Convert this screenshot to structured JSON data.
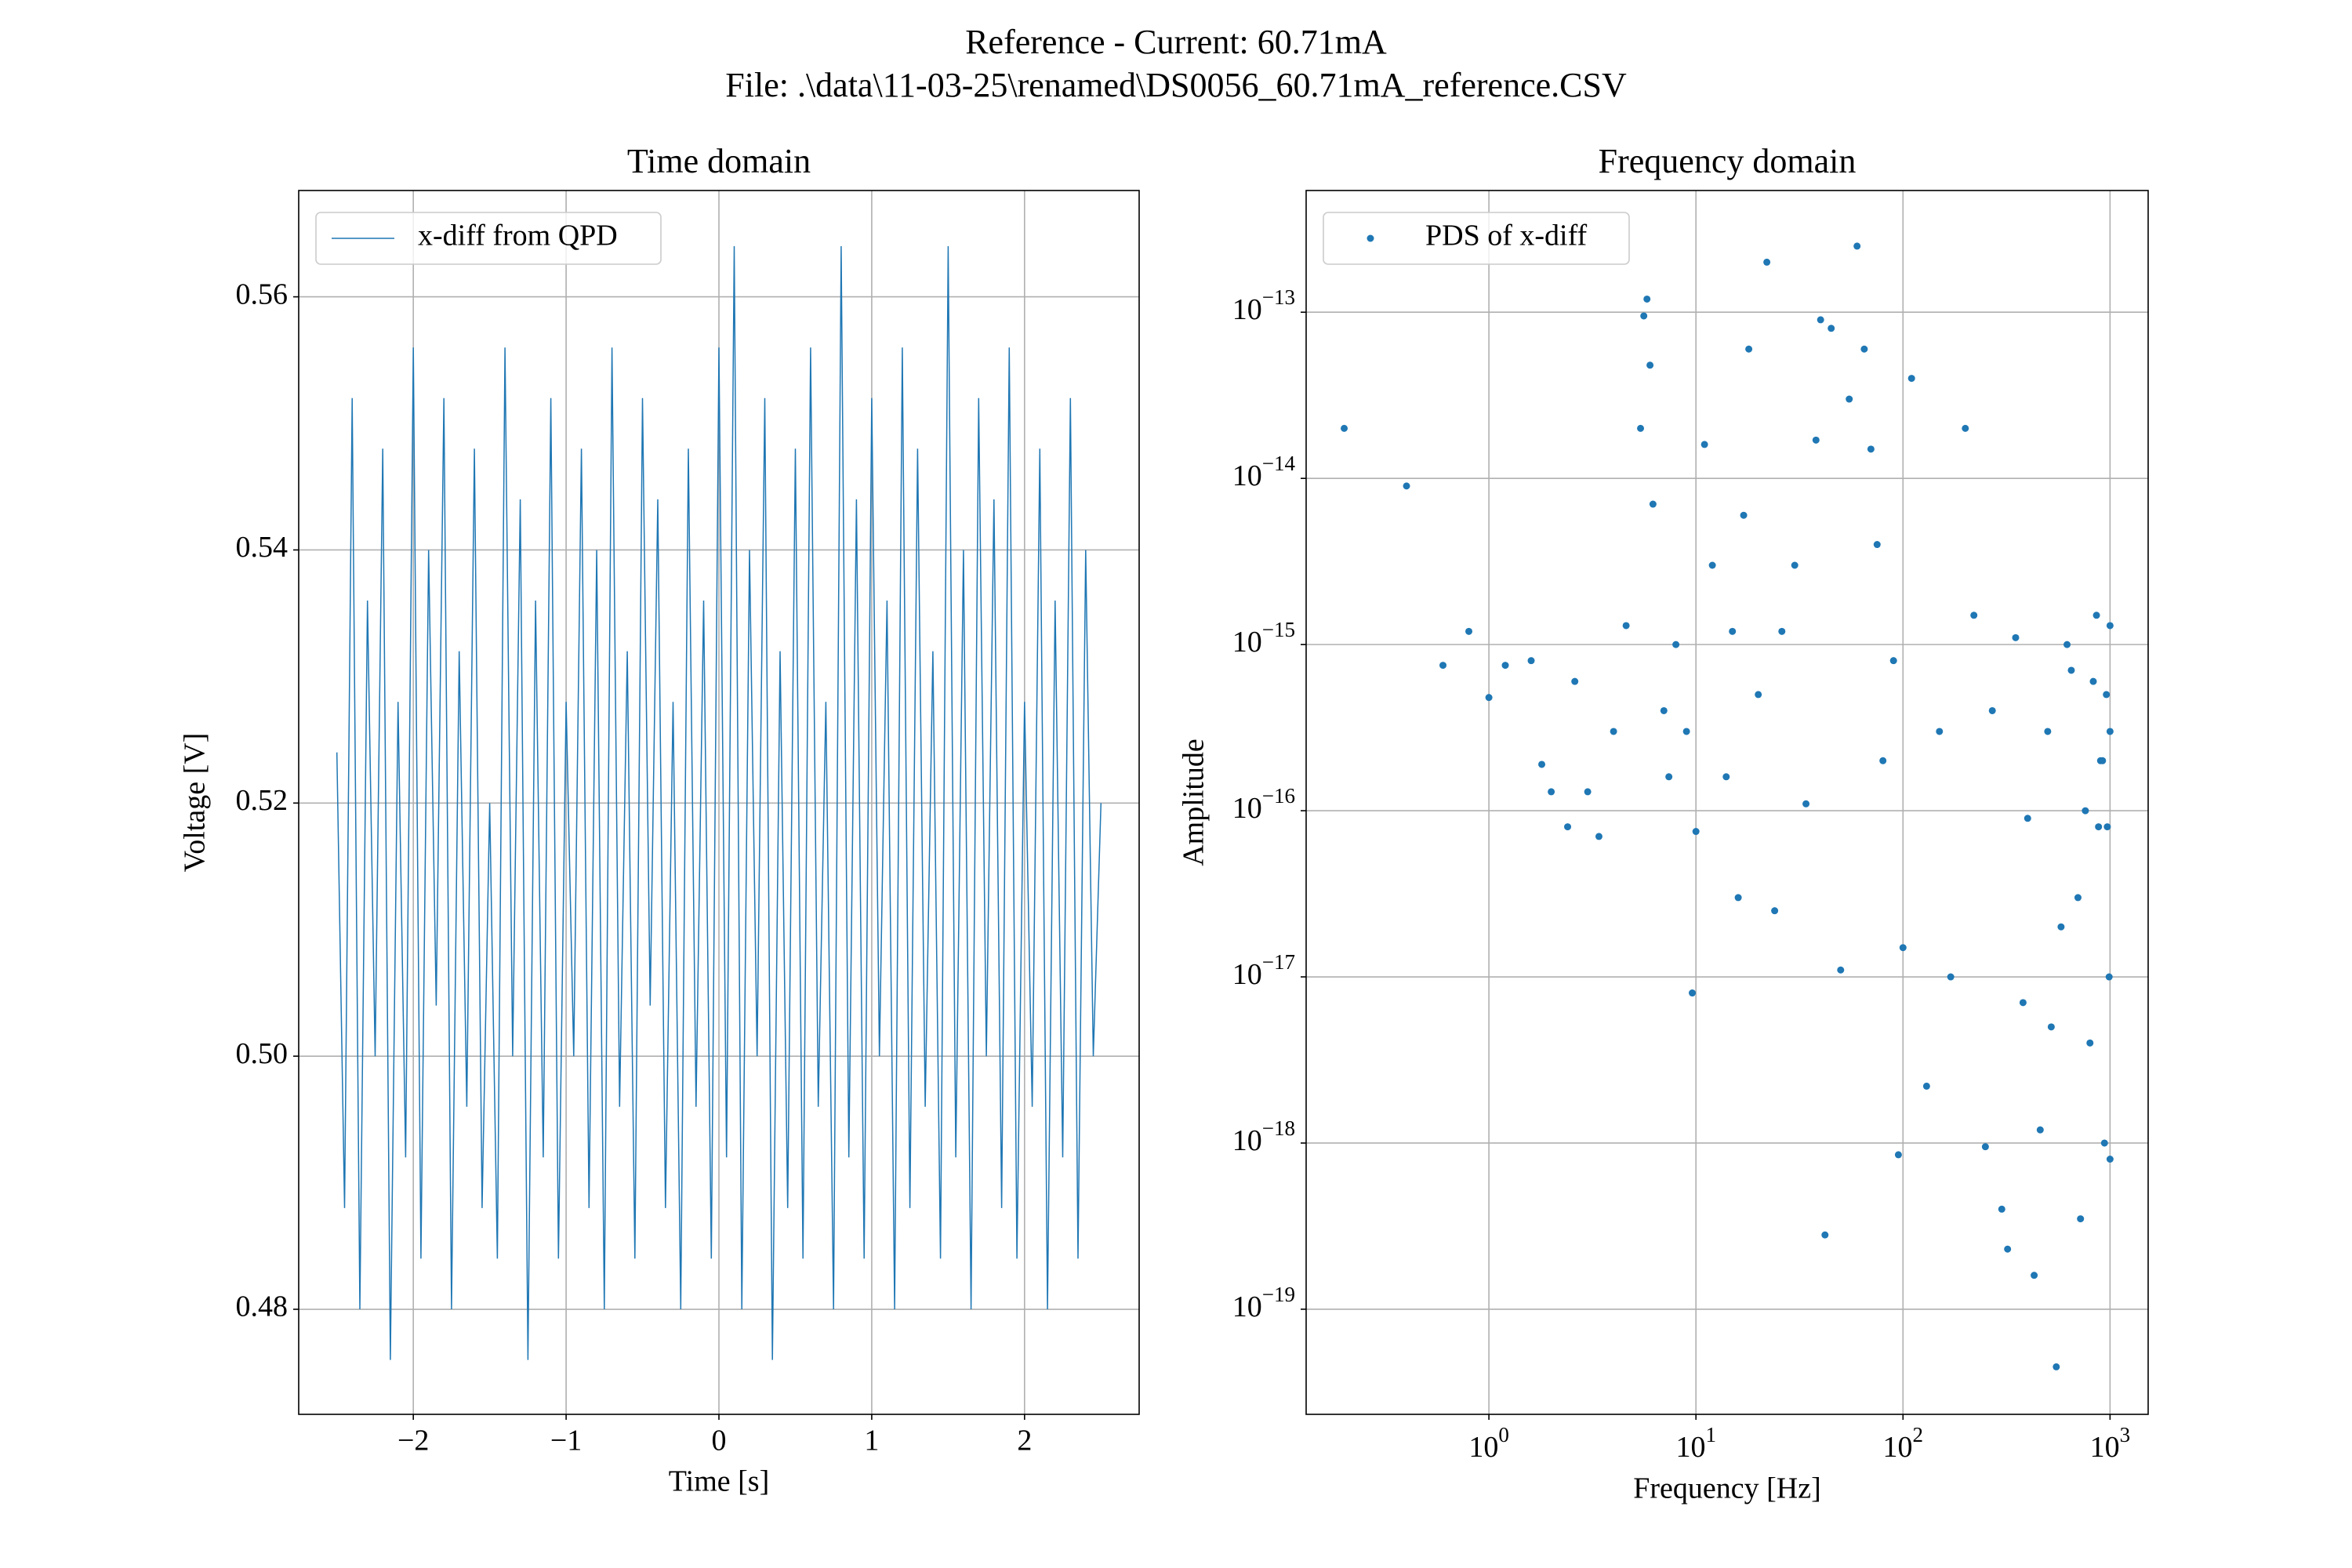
{
  "suptitle": [
    "Reference - Current: 60.71mA",
    "File: .\\data\\11-03-25\\renamed\\DS0056_60.71mA_reference.CSV"
  ],
  "chart_data": [
    {
      "type": "line",
      "title": "Time domain",
      "xlabel": "Time [s]",
      "ylabel": "Voltage [V]",
      "xlim": [
        -2.75,
        2.75
      ],
      "ylim": [
        0.4717,
        0.5684
      ],
      "grid": true,
      "legend": "upper left",
      "xticks": [
        {
          "value": -2,
          "label": "−2"
        },
        {
          "value": -1,
          "label": "−1"
        },
        0,
        1,
        2
      ],
      "yticks": [
        0.48,
        {
          "value": 0.5,
          "label": "0.50"
        },
        0.52,
        0.54,
        0.56
      ],
      "x": [
        -2.5,
        -2.45,
        -2.4,
        -2.35,
        -2.3,
        -2.25,
        -2.2,
        -2.15,
        -2.1,
        -2.05,
        -2,
        -1.95,
        -1.9,
        -1.85,
        -1.8,
        -1.75,
        -1.7,
        -1.65,
        -1.6,
        -1.55,
        -1.5,
        -1.45,
        -1.4,
        -1.35,
        -1.3,
        -1.25,
        -1.2,
        -1.15,
        -1.1,
        -1.05,
        -1,
        -0.95,
        -0.9,
        -0.85,
        -0.8,
        -0.75,
        -0.7,
        -0.65,
        -0.6,
        -0.55,
        -0.5,
        -0.45,
        -0.4,
        -0.35,
        -0.3,
        -0.25,
        -0.2,
        -0.15,
        -0.1,
        -0.05,
        0,
        0.05,
        0.1,
        0.15,
        0.2,
        0.25,
        0.3,
        0.35,
        0.4,
        0.45,
        0.5,
        0.55,
        0.6,
        0.65,
        0.7,
        0.75,
        0.8,
        0.85,
        0.9,
        0.95,
        1,
        1.05,
        1.1,
        1.15,
        1.2,
        1.25,
        1.3,
        1.35,
        1.4,
        1.45,
        1.5,
        1.55,
        1.6,
        1.65,
        1.7,
        1.75,
        1.8,
        1.85,
        1.9,
        1.95,
        2,
        2.05,
        2.1,
        2.15,
        2.2,
        2.25,
        2.3,
        2.35,
        2.4,
        2.45,
        2.5
      ],
      "series": [
        {
          "name": "x-diff from QPD",
          "color": "#1f77b4",
          "values": [
            0.524,
            0.488,
            0.552,
            0.48,
            0.536,
            0.5,
            0.548,
            0.476,
            0.528,
            0.492,
            0.556,
            0.484,
            0.54,
            0.504,
            0.552,
            0.48,
            0.532,
            0.496,
            0.548,
            0.488,
            0.52,
            0.484,
            0.556,
            0.5,
            0.544,
            0.476,
            0.536,
            0.492,
            0.552,
            0.484,
            0.528,
            0.5,
            0.548,
            0.488,
            0.54,
            0.48,
            0.556,
            0.496,
            0.532,
            0.484,
            0.552,
            0.504,
            0.544,
            0.488,
            0.528,
            0.48,
            0.548,
            0.496,
            0.536,
            0.484,
            0.556,
            0.492,
            0.564,
            0.48,
            0.54,
            0.5,
            0.552,
            0.476,
            0.532,
            0.488,
            0.548,
            0.484,
            0.556,
            0.496,
            0.528,
            0.48,
            0.564,
            0.492,
            0.544,
            0.484,
            0.552,
            0.5,
            0.536,
            0.48,
            0.556,
            0.488,
            0.548,
            0.496,
            0.532,
            0.484,
            0.564,
            0.492,
            0.54,
            0.48,
            0.552,
            0.5,
            0.544,
            0.488,
            0.556,
            0.484,
            0.528,
            0.496,
            0.548,
            0.48,
            0.536,
            0.492,
            0.552,
            0.484,
            0.54,
            0.5,
            0.52
          ]
        }
      ]
    },
    {
      "type": "scatter",
      "title": "Frequency domain",
      "xlabel": "Frequency [Hz]",
      "ylabel": "Amplitude",
      "xscale": "log",
      "yscale": "log",
      "xlim": [
        0.131,
        1528
      ],
      "ylim": [
        2.33e-20,
        5.4e-13
      ],
      "grid": true,
      "legend": "upper left",
      "xticks": [
        {
          "value": 1,
          "label": "100"
        },
        {
          "value": 10,
          "label": "101"
        },
        {
          "value": 100,
          "label": "102"
        },
        {
          "value": 1000,
          "label": "103"
        }
      ],
      "yticks": [
        {
          "value": 1e-19,
          "label": "10−19"
        },
        {
          "value": 1e-18,
          "label": "10−18"
        },
        {
          "value": 1e-17,
          "label": "10−17"
        },
        {
          "value": 1e-16,
          "label": "10−16"
        },
        {
          "value": 1e-15,
          "label": "10−15"
        },
        {
          "value": 1e-14,
          "label": "10−14"
        },
        {
          "value": 1e-13,
          "label": "10−13"
        }
      ],
      "x": [
        0.2,
        0.4,
        0.6,
        0.8,
        1,
        1.2,
        1.6,
        1.8,
        2,
        2.4,
        2.6,
        3,
        3.4,
        4,
        4.6,
        5.4,
        5.6,
        5.8,
        6,
        6.2,
        7,
        7.4,
        8,
        9,
        9.6,
        10,
        11,
        12,
        14,
        15,
        16,
        17,
        18,
        20,
        22,
        24,
        26,
        30,
        34,
        38,
        40,
        42,
        45,
        50,
        55,
        60,
        65,
        70,
        75,
        80,
        90,
        95,
        100,
        110,
        130,
        150,
        170,
        200,
        220,
        250,
        270,
        300,
        320,
        350,
        380,
        400,
        430,
        460,
        500,
        520,
        550,
        580,
        620,
        650,
        700,
        720,
        760,
        800,
        830,
        860,
        900,
        940,
        970,
        1000,
        1000,
        1000,
        990,
        960,
        920,
        880
      ],
      "series": [
        {
          "name": "PDS of x-diff",
          "color": "#1f77b4",
          "values": [
            2e-14,
            9e-15,
            7.5e-16,
            1.2e-15,
            4.8e-16,
            7.5e-16,
            8e-16,
            1.9e-16,
            1.3e-16,
            8e-17,
            6e-16,
            1.3e-16,
            7e-17,
            3e-16,
            1.3e-15,
            2e-14,
            9.5e-14,
            1.2e-13,
            4.8e-14,
            7e-15,
            4e-16,
            1.6e-16,
            1e-15,
            3e-16,
            8e-18,
            7.5e-17,
            1.6e-14,
            3e-15,
            1.6e-16,
            1.2e-15,
            3e-17,
            6e-15,
            6e-14,
            5e-16,
            2e-13,
            2.5e-17,
            1.2e-15,
            3e-15,
            1.1e-16,
            1.7e-14,
            9e-14,
            2.8e-19,
            8e-14,
            1.1e-17,
            3e-14,
            2.5e-13,
            6e-14,
            1.5e-14,
            4e-15,
            2e-16,
            8e-16,
            8.5e-19,
            1.5e-17,
            4e-14,
            2.2e-18,
            3e-16,
            1e-17,
            2e-14,
            1.5e-15,
            9.5e-19,
            4e-16,
            4e-19,
            2.3e-19,
            1.1e-15,
            7e-18,
            9e-17,
            1.6e-19,
            1.2e-18,
            3e-16,
            5e-18,
            4.5e-20,
            2e-17,
            1e-15,
            7e-16,
            3e-17,
            3.5e-19,
            1e-16,
            4e-18,
            6e-16,
            1.5e-15,
            2e-16,
            1e-18,
            8e-17,
            8e-19,
            1.3e-15,
            3e-16,
            1e-17,
            5e-16,
            2e-16,
            8e-17
          ]
        }
      ]
    }
  ]
}
